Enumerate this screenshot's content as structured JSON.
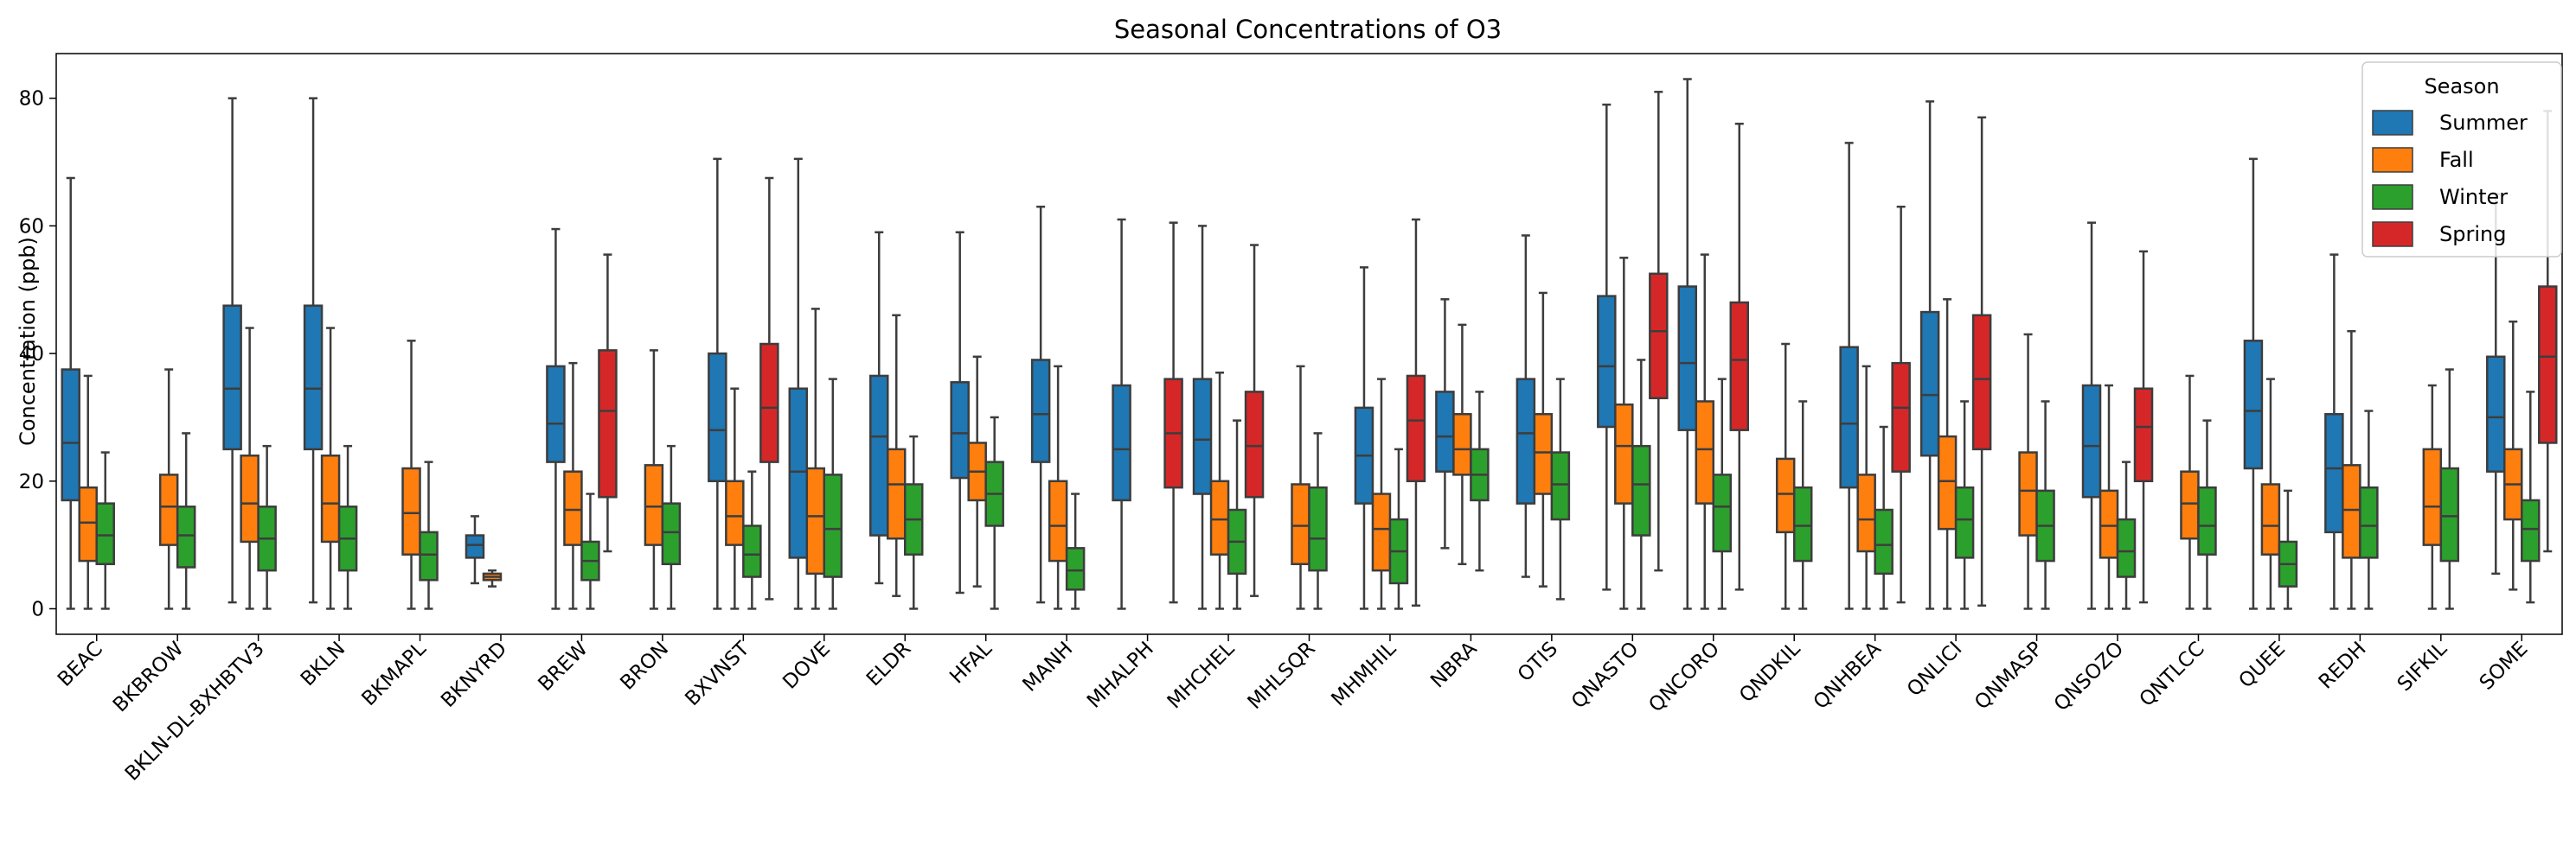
{
  "chart_data": {
    "type": "box",
    "title": "Seasonal Concentrations of O3",
    "xlabel": "",
    "ylabel": "Concentration (ppb)",
    "ylim": [
      -4,
      87
    ],
    "yticks": [
      0,
      20,
      40,
      60,
      80
    ],
    "grid": false,
    "legend": {
      "title": "Season",
      "placement": "top-right"
    },
    "series": [
      {
        "name": "Summer",
        "color": "#1f77b4"
      },
      {
        "name": "Fall",
        "color": "#ff7f0e"
      },
      {
        "name": "Winter",
        "color": "#2ca02c"
      },
      {
        "name": "Spring",
        "color": "#d62728"
      }
    ],
    "categories": [
      "BEAC",
      "BKBROW",
      "BKLN-DL-BXHBTV3",
      "BKLN",
      "BKMAPL",
      "BKNYRD",
      "BREW",
      "BRON",
      "BXVNST",
      "DOVE",
      "ELDR",
      "HFAL",
      "MANH",
      "MHALPH",
      "MHCHEL",
      "MHLSQR",
      "MHMHIL",
      "NBRA",
      "OTIS",
      "QNASTO",
      "QNCORO",
      "QNDKIL",
      "QNHBEA",
      "QNLICI",
      "QNMASP",
      "QNSOZO",
      "QNTLCC",
      "QUEE",
      "REDH",
      "SIFKIL",
      "SOME"
    ],
    "boxes": [
      {
        "category": "BEAC",
        "season": "Summer",
        "whislo": 0,
        "q1": 17,
        "med": 26,
        "q3": 37.5,
        "whishi": 67.5
      },
      {
        "category": "BEAC",
        "season": "Fall",
        "whislo": 0,
        "q1": 7.5,
        "med": 13.5,
        "q3": 19,
        "whishi": 36.5
      },
      {
        "category": "BEAC",
        "season": "Winter",
        "whislo": 0,
        "q1": 7,
        "med": 11.5,
        "q3": 16.5,
        "whishi": 24.5
      },
      {
        "category": "BKBROW",
        "season": "Fall",
        "whislo": 0,
        "q1": 10,
        "med": 16,
        "q3": 21,
        "whishi": 37.5
      },
      {
        "category": "BKBROW",
        "season": "Winter",
        "whislo": 0,
        "q1": 6.5,
        "med": 11.5,
        "q3": 16,
        "whishi": 27.5
      },
      {
        "category": "BKLN-DL-BXHBTV3",
        "season": "Summer",
        "whislo": 1,
        "q1": 25,
        "med": 34.5,
        "q3": 47.5,
        "whishi": 80
      },
      {
        "category": "BKLN-DL-BXHBTV3",
        "season": "Fall",
        "whislo": 0,
        "q1": 10.5,
        "med": 16.5,
        "q3": 24,
        "whishi": 44
      },
      {
        "category": "BKLN-DL-BXHBTV3",
        "season": "Winter",
        "whislo": 0,
        "q1": 6,
        "med": 11,
        "q3": 16,
        "whishi": 25.5
      },
      {
        "category": "BKLN",
        "season": "Summer",
        "whislo": 1,
        "q1": 25,
        "med": 34.5,
        "q3": 47.5,
        "whishi": 80
      },
      {
        "category": "BKLN",
        "season": "Fall",
        "whislo": 0,
        "q1": 10.5,
        "med": 16.5,
        "q3": 24,
        "whishi": 44
      },
      {
        "category": "BKLN",
        "season": "Winter",
        "whislo": 0,
        "q1": 6,
        "med": 11,
        "q3": 16,
        "whishi": 25.5
      },
      {
        "category": "BKMAPL",
        "season": "Fall",
        "whislo": 0,
        "q1": 8.5,
        "med": 15,
        "q3": 22,
        "whishi": 42
      },
      {
        "category": "BKMAPL",
        "season": "Winter",
        "whislo": 0,
        "q1": 4.5,
        "med": 8.5,
        "q3": 12,
        "whishi": 23
      },
      {
        "category": "BKNYRD",
        "season": "Summer",
        "whislo": 4,
        "q1": 8,
        "med": 10,
        "q3": 11.5,
        "whishi": 14.5
      },
      {
        "category": "BKNYRD",
        "season": "Fall",
        "whislo": 3.5,
        "q1": 4.5,
        "med": 5,
        "q3": 5.5,
        "whishi": 6
      },
      {
        "category": "BREW",
        "season": "Summer",
        "whislo": 0,
        "q1": 23,
        "med": 29,
        "q3": 38,
        "whishi": 59.5
      },
      {
        "category": "BREW",
        "season": "Fall",
        "whislo": 0,
        "q1": 10,
        "med": 15.5,
        "q3": 21.5,
        "whishi": 38.5
      },
      {
        "category": "BREW",
        "season": "Winter",
        "whislo": 0,
        "q1": 4.5,
        "med": 7.5,
        "q3": 10.5,
        "whishi": 18
      },
      {
        "category": "BREW",
        "season": "Spring",
        "whislo": 9,
        "q1": 17.5,
        "med": 31,
        "q3": 40.5,
        "whishi": 55.5
      },
      {
        "category": "BRON",
        "season": "Fall",
        "whislo": 0,
        "q1": 10,
        "med": 16,
        "q3": 22.5,
        "whishi": 40.5
      },
      {
        "category": "BRON",
        "season": "Winter",
        "whislo": 0,
        "q1": 7,
        "med": 12,
        "q3": 16.5,
        "whishi": 25.5
      },
      {
        "category": "BXVNST",
        "season": "Summer",
        "whislo": 0,
        "q1": 20,
        "med": 28,
        "q3": 40,
        "whishi": 70.5
      },
      {
        "category": "BXVNST",
        "season": "Fall",
        "whislo": 0,
        "q1": 10,
        "med": 14.5,
        "q3": 20,
        "whishi": 34.5
      },
      {
        "category": "BXVNST",
        "season": "Winter",
        "whislo": 0,
        "q1": 5,
        "med": 8.5,
        "q3": 13,
        "whishi": 21.5
      },
      {
        "category": "BXVNST",
        "season": "Spring",
        "whislo": 1.5,
        "q1": 23,
        "med": 31.5,
        "q3": 41.5,
        "whishi": 67.5
      },
      {
        "category": "DOVE",
        "season": "Summer",
        "whislo": 0,
        "q1": 8,
        "med": 21.5,
        "q3": 34.5,
        "whishi": 70.5
      },
      {
        "category": "DOVE",
        "season": "Fall",
        "whislo": 0,
        "q1": 5.5,
        "med": 14.5,
        "q3": 22,
        "whishi": 47
      },
      {
        "category": "DOVE",
        "season": "Winter",
        "whislo": 0,
        "q1": 5,
        "med": 12.5,
        "q3": 21,
        "whishi": 36
      },
      {
        "category": "ELDR",
        "season": "Summer",
        "whislo": 4,
        "q1": 11.5,
        "med": 27,
        "q3": 36.5,
        "whishi": 59
      },
      {
        "category": "ELDR",
        "season": "Fall",
        "whislo": 2,
        "q1": 11,
        "med": 19.5,
        "q3": 25,
        "whishi": 46
      },
      {
        "category": "ELDR",
        "season": "Winter",
        "whislo": 0,
        "q1": 8.5,
        "med": 14,
        "q3": 19.5,
        "whishi": 27
      },
      {
        "category": "HFAL",
        "season": "Summer",
        "whislo": 2.5,
        "q1": 20.5,
        "med": 27.5,
        "q3": 35.5,
        "whishi": 59
      },
      {
        "category": "HFAL",
        "season": "Fall",
        "whislo": 3.5,
        "q1": 17,
        "med": 21.5,
        "q3": 26,
        "whishi": 39.5
      },
      {
        "category": "HFAL",
        "season": "Winter",
        "whislo": 0,
        "q1": 13,
        "med": 18,
        "q3": 23,
        "whishi": 30
      },
      {
        "category": "MANH",
        "season": "Summer",
        "whislo": 1,
        "q1": 23,
        "med": 30.5,
        "q3": 39,
        "whishi": 63
      },
      {
        "category": "MANH",
        "season": "Fall",
        "whislo": 0,
        "q1": 7.5,
        "med": 13,
        "q3": 20,
        "whishi": 38
      },
      {
        "category": "MANH",
        "season": "Winter",
        "whislo": 0,
        "q1": 3,
        "med": 6,
        "q3": 9.5,
        "whishi": 18
      },
      {
        "category": "MHALPH",
        "season": "Summer",
        "whislo": 0,
        "q1": 17,
        "med": 25,
        "q3": 35,
        "whishi": 61
      },
      {
        "category": "MHALPH",
        "season": "Spring",
        "whislo": 1,
        "q1": 19,
        "med": 27.5,
        "q3": 36,
        "whishi": 60.5
      },
      {
        "category": "MHCHEL",
        "season": "Summer",
        "whislo": 0,
        "q1": 18,
        "med": 26.5,
        "q3": 36,
        "whishi": 60
      },
      {
        "category": "MHCHEL",
        "season": "Fall",
        "whislo": 0,
        "q1": 8.5,
        "med": 14,
        "q3": 20,
        "whishi": 37
      },
      {
        "category": "MHCHEL",
        "season": "Winter",
        "whislo": 0,
        "q1": 5.5,
        "med": 10.5,
        "q3": 15.5,
        "whishi": 29.5
      },
      {
        "category": "MHCHEL",
        "season": "Spring",
        "whislo": 2,
        "q1": 17.5,
        "med": 25.5,
        "q3": 34,
        "whishi": 57
      },
      {
        "category": "MHLSQR",
        "season": "Fall",
        "whislo": 0,
        "q1": 7,
        "med": 13,
        "q3": 19.5,
        "whishi": 38
      },
      {
        "category": "MHLSQR",
        "season": "Winter",
        "whislo": 0,
        "q1": 6,
        "med": 11,
        "q3": 19,
        "whishi": 27.5
      },
      {
        "category": "MHMHIL",
        "season": "Summer",
        "whislo": 0,
        "q1": 16.5,
        "med": 24,
        "q3": 31.5,
        "whishi": 53.5
      },
      {
        "category": "MHMHIL",
        "season": "Fall",
        "whislo": 0,
        "q1": 6,
        "med": 12.5,
        "q3": 18,
        "whishi": 36
      },
      {
        "category": "MHMHIL",
        "season": "Winter",
        "whislo": 0,
        "q1": 4,
        "med": 9,
        "q3": 14,
        "whishi": 25
      },
      {
        "category": "MHMHIL",
        "season": "Spring",
        "whislo": 0.5,
        "q1": 20,
        "med": 29.5,
        "q3": 36.5,
        "whishi": 61
      },
      {
        "category": "NBRA",
        "season": "Summer",
        "whislo": 9.5,
        "q1": 21.5,
        "med": 27,
        "q3": 34,
        "whishi": 48.5
      },
      {
        "category": "NBRA",
        "season": "Fall",
        "whislo": 7,
        "q1": 21,
        "med": 25,
        "q3": 30.5,
        "whishi": 44.5
      },
      {
        "category": "NBRA",
        "season": "Winter",
        "whislo": 6,
        "q1": 17,
        "med": 21,
        "q3": 25,
        "whishi": 34
      },
      {
        "category": "OTIS",
        "season": "Summer",
        "whislo": 5,
        "q1": 16.5,
        "med": 27.5,
        "q3": 36,
        "whishi": 58.5
      },
      {
        "category": "OTIS",
        "season": "Fall",
        "whislo": 3.5,
        "q1": 18,
        "med": 24.5,
        "q3": 30.5,
        "whishi": 49.5
      },
      {
        "category": "OTIS",
        "season": "Winter",
        "whislo": 1.5,
        "q1": 14,
        "med": 19.5,
        "q3": 24.5,
        "whishi": 36
      },
      {
        "category": "QNASTO",
        "season": "Summer",
        "whislo": 3,
        "q1": 28.5,
        "med": 38,
        "q3": 49,
        "whishi": 79
      },
      {
        "category": "QNASTO",
        "season": "Fall",
        "whislo": 0,
        "q1": 16.5,
        "med": 25.5,
        "q3": 32,
        "whishi": 55
      },
      {
        "category": "QNASTO",
        "season": "Winter",
        "whislo": 0,
        "q1": 11.5,
        "med": 19.5,
        "q3": 25.5,
        "whishi": 39
      },
      {
        "category": "QNASTO",
        "season": "Spring",
        "whislo": 6,
        "q1": 33,
        "med": 43.5,
        "q3": 52.5,
        "whishi": 81
      },
      {
        "category": "QNCORO",
        "season": "Summer",
        "whislo": 0,
        "q1": 28,
        "med": 38.5,
        "q3": 50.5,
        "whishi": 83
      },
      {
        "category": "QNCORO",
        "season": "Fall",
        "whislo": 0,
        "q1": 16.5,
        "med": 25,
        "q3": 32.5,
        "whishi": 55.5
      },
      {
        "category": "QNCORO",
        "season": "Winter",
        "whislo": 0,
        "q1": 9,
        "med": 16,
        "q3": 21,
        "whishi": 36
      },
      {
        "category": "QNCORO",
        "season": "Spring",
        "whislo": 3,
        "q1": 28,
        "med": 39,
        "q3": 48,
        "whishi": 76
      },
      {
        "category": "QNDKIL",
        "season": "Fall",
        "whislo": 0,
        "q1": 12,
        "med": 18,
        "q3": 23.5,
        "whishi": 41.5
      },
      {
        "category": "QNDKIL",
        "season": "Winter",
        "whislo": 0,
        "q1": 7.5,
        "med": 13,
        "q3": 19,
        "whishi": 32.5
      },
      {
        "category": "QNHBEA",
        "season": "Summer",
        "whislo": 0,
        "q1": 19,
        "med": 29,
        "q3": 41,
        "whishi": 73
      },
      {
        "category": "QNHBEA",
        "season": "Fall",
        "whislo": 0,
        "q1": 9,
        "med": 14,
        "q3": 21,
        "whishi": 38
      },
      {
        "category": "QNHBEA",
        "season": "Winter",
        "whislo": 0,
        "q1": 5.5,
        "med": 10,
        "q3": 15.5,
        "whishi": 28.5
      },
      {
        "category": "QNHBEA",
        "season": "Spring",
        "whislo": 1,
        "q1": 21.5,
        "med": 31.5,
        "q3": 38.5,
        "whishi": 63
      },
      {
        "category": "QNLICI",
        "season": "Summer",
        "whislo": 0,
        "q1": 24,
        "med": 33.5,
        "q3": 46.5,
        "whishi": 79.5
      },
      {
        "category": "QNLICI",
        "season": "Fall",
        "whislo": 0,
        "q1": 12.5,
        "med": 20,
        "q3": 27,
        "whishi": 48.5
      },
      {
        "category": "QNLICI",
        "season": "Winter",
        "whislo": 0,
        "q1": 8,
        "med": 14,
        "q3": 19,
        "whishi": 32.5
      },
      {
        "category": "QNLICI",
        "season": "Spring",
        "whislo": 0.5,
        "q1": 25,
        "med": 36,
        "q3": 46,
        "whishi": 77
      },
      {
        "category": "QNMASP",
        "season": "Fall",
        "whislo": 0,
        "q1": 11.5,
        "med": 18.5,
        "q3": 24.5,
        "whishi": 43
      },
      {
        "category": "QNMASP",
        "season": "Winter",
        "whislo": 0,
        "q1": 7.5,
        "med": 13,
        "q3": 18.5,
        "whishi": 32.5
      },
      {
        "category": "QNSOZO",
        "season": "Summer",
        "whislo": 0,
        "q1": 17.5,
        "med": 25.5,
        "q3": 35,
        "whishi": 60.5
      },
      {
        "category": "QNSOZO",
        "season": "Fall",
        "whislo": 0,
        "q1": 8,
        "med": 13,
        "q3": 18.5,
        "whishi": 35
      },
      {
        "category": "QNSOZO",
        "season": "Winter",
        "whislo": 0,
        "q1": 5,
        "med": 9,
        "q3": 14,
        "whishi": 23
      },
      {
        "category": "QNSOZO",
        "season": "Spring",
        "whislo": 1,
        "q1": 20,
        "med": 28.5,
        "q3": 34.5,
        "whishi": 56
      },
      {
        "category": "QNTLCC",
        "season": "Fall",
        "whislo": 0,
        "q1": 11,
        "med": 16.5,
        "q3": 21.5,
        "whishi": 36.5
      },
      {
        "category": "QNTLCC",
        "season": "Winter",
        "whislo": 0,
        "q1": 8.5,
        "med": 13,
        "q3": 19,
        "whishi": 29.5
      },
      {
        "category": "QUEE",
        "season": "Summer",
        "whislo": 0,
        "q1": 22,
        "med": 31,
        "q3": 42,
        "whishi": 70.5
      },
      {
        "category": "QUEE",
        "season": "Fall",
        "whislo": 0,
        "q1": 8.5,
        "med": 13,
        "q3": 19.5,
        "whishi": 36
      },
      {
        "category": "QUEE",
        "season": "Winter",
        "whislo": 0,
        "q1": 3.5,
        "med": 7,
        "q3": 10.5,
        "whishi": 18.5
      },
      {
        "category": "REDH",
        "season": "Summer",
        "whislo": 0,
        "q1": 12,
        "med": 22,
        "q3": 30.5,
        "whishi": 55.5
      },
      {
        "category": "REDH",
        "season": "Fall",
        "whislo": 0,
        "q1": 8,
        "med": 15.5,
        "q3": 22.5,
        "whishi": 43.5
      },
      {
        "category": "REDH",
        "season": "Winter",
        "whislo": 0,
        "q1": 8,
        "med": 13,
        "q3": 19,
        "whishi": 31
      },
      {
        "category": "SIFKIL",
        "season": "Fall",
        "whislo": 0,
        "q1": 10,
        "med": 16,
        "q3": 25,
        "whishi": 35
      },
      {
        "category": "SIFKIL",
        "season": "Winter",
        "whislo": 0,
        "q1": 7.5,
        "med": 14.5,
        "q3": 22,
        "whishi": 37.5
      },
      {
        "category": "SOME",
        "season": "Summer",
        "whislo": 5.5,
        "q1": 21.5,
        "med": 30,
        "q3": 39.5,
        "whishi": 65
      },
      {
        "category": "SOME",
        "season": "Fall",
        "whislo": 3,
        "q1": 14,
        "med": 19.5,
        "q3": 25,
        "whishi": 45
      },
      {
        "category": "SOME",
        "season": "Winter",
        "whislo": 1,
        "q1": 7.5,
        "med": 12.5,
        "q3": 17,
        "whishi": 34
      },
      {
        "category": "SOME",
        "season": "Spring",
        "whislo": 9,
        "q1": 26,
        "med": 39.5,
        "q3": 50.5,
        "whishi": 78
      }
    ]
  }
}
